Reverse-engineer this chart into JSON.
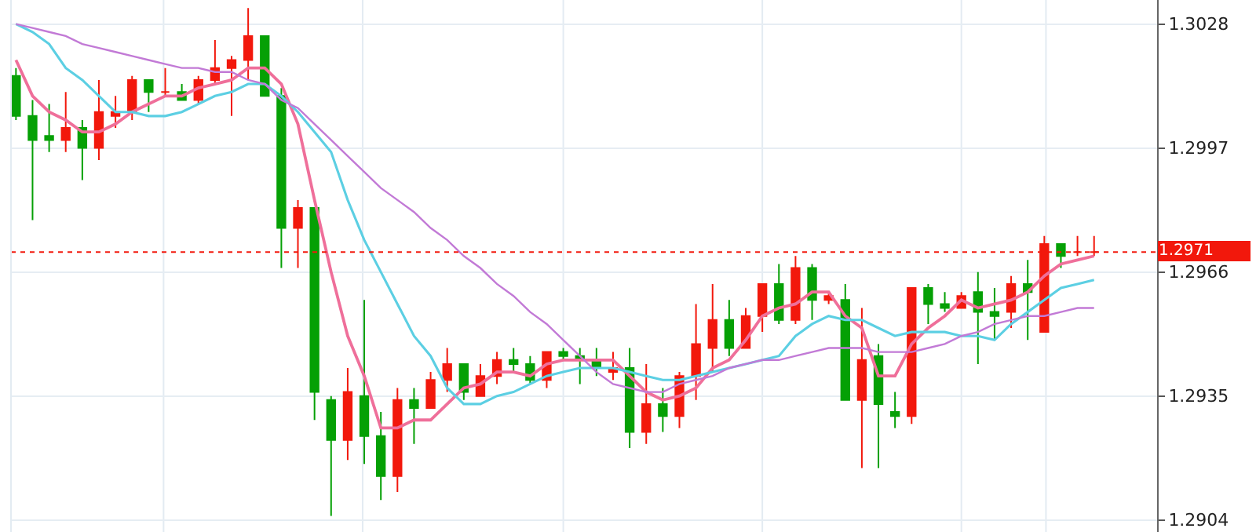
{
  "chart_data": {
    "type": "candlestick",
    "categories": [
      null,
      null,
      null,
      null,
      null,
      null,
      null,
      null,
      null,
      null,
      null,
      null,
      null,
      null,
      null,
      null,
      null,
      null,
      null,
      null,
      null,
      null,
      null,
      null,
      null,
      null,
      null,
      null,
      null,
      null,
      null,
      null,
      null,
      null,
      null,
      null,
      null,
      null,
      null,
      null,
      null,
      null,
      null,
      null,
      null,
      null,
      null,
      null,
      null,
      null,
      null,
      null,
      null,
      null,
      null,
      null,
      null,
      null,
      null,
      null,
      null,
      null,
      null,
      null,
      null,
      null
    ],
    "ohlc": [
      [
        1.3015,
        1.3017,
        1.3004,
        1.3005
      ],
      [
        1.3005,
        1.3009,
        1.2979,
        1.2999
      ],
      [
        1.3,
        1.3008,
        1.2996,
        1.2999
      ],
      [
        1.2999,
        1.3011,
        1.2996,
        1.3002
      ],
      [
        1.3002,
        1.3004,
        1.2989,
        1.2997
      ],
      [
        1.2997,
        1.3014,
        1.2994,
        1.3006
      ],
      [
        1.3005,
        1.301,
        1.3002,
        1.3006
      ],
      [
        1.3006,
        1.3015,
        1.3004,
        1.3014
      ],
      [
        1.3014,
        1.3014,
        1.3006,
        1.3011
      ],
      [
        1.3011,
        1.3017,
        1.301,
        1.3011
      ],
      [
        1.3011,
        1.3013,
        1.3009,
        1.3009
      ],
      [
        1.3009,
        1.3015,
        1.3008,
        1.3014
      ],
      [
        1.3014,
        1.3024,
        1.3013,
        1.3017
      ],
      [
        1.3017,
        1.302,
        1.3005,
        1.3019
      ],
      [
        1.3019,
        1.3032,
        1.3014,
        1.3025
      ],
      [
        1.3025,
        1.3025,
        1.301,
        1.301
      ],
      [
        1.301,
        1.3012,
        1.2967,
        1.2977
      ],
      [
        1.2977,
        1.2984,
        1.2967,
        1.2982
      ],
      [
        1.2982,
        1.2982,
        1.2929,
        1.2936
      ],
      [
        1.2934,
        1.2935,
        1.2905,
        1.2924
      ],
      [
        1.2924,
        1.2942,
        1.2919,
        1.2936
      ],
      [
        1.2935,
        1.2959,
        1.2918,
        1.2925
      ],
      [
        1.2925,
        1.2931,
        1.2909,
        1.2915
      ],
      [
        1.2915,
        1.2937,
        1.2911,
        1.2934
      ],
      [
        1.2934,
        1.2937,
        1.2923,
        1.2932
      ],
      [
        1.2932,
        1.2941,
        1.2932,
        1.2939
      ],
      [
        1.2939,
        1.2947,
        1.2936,
        1.2943
      ],
      [
        1.2943,
        1.2943,
        1.2934,
        1.2936
      ],
      [
        1.2935,
        1.2943,
        1.2935,
        1.294
      ],
      [
        1.294,
        1.2946,
        1.2938,
        1.2944
      ],
      [
        1.2944,
        1.2947,
        1.2941,
        1.2943
      ],
      [
        1.2943,
        1.2945,
        1.2938,
        1.2939
      ],
      [
        1.2939,
        1.2946,
        1.2937,
        1.2946
      ],
      [
        1.2946,
        1.2947,
        1.2944,
        1.2945
      ],
      [
        1.2945,
        1.2947,
        1.2938,
        1.2944
      ],
      [
        1.2944,
        1.2947,
        1.294,
        1.2942
      ],
      [
        1.2941,
        1.2946,
        1.2939,
        1.2942
      ],
      [
        1.2942,
        1.2947,
        1.2922,
        1.2926
      ],
      [
        1.2926,
        1.2943,
        1.2923,
        1.2933
      ],
      [
        1.2933,
        1.2937,
        1.2926,
        1.293
      ],
      [
        1.293,
        1.2941,
        1.2927,
        1.294
      ],
      [
        1.294,
        1.2958,
        1.2934,
        1.2948
      ],
      [
        1.2947,
        1.2963,
        1.2941,
        1.2954
      ],
      [
        1.2954,
        1.2959,
        1.2945,
        1.2947
      ],
      [
        1.2947,
        1.2957,
        1.2947,
        1.2955
      ],
      [
        1.2955,
        1.2963,
        1.2951,
        1.2963
      ],
      [
        1.2963,
        1.2968,
        1.2953,
        1.2954
      ],
      [
        1.2954,
        1.297,
        1.2953,
        1.2967
      ],
      [
        1.2967,
        1.2968,
        1.2954,
        1.2959
      ],
      [
        1.2959,
        1.2961,
        1.2958,
        1.296
      ],
      [
        1.2959,
        1.2963,
        1.2934,
        1.2934
      ],
      [
        1.2934,
        1.2957,
        1.2917,
        1.2944
      ],
      [
        1.2945,
        1.2948,
        1.2917,
        1.2933
      ],
      [
        1.2931,
        1.2936,
        1.2927,
        1.293
      ],
      [
        1.293,
        1.2962,
        1.2928,
        1.2962
      ],
      [
        1.2962,
        1.2963,
        1.2953,
        1.2958
      ],
      [
        1.2958,
        1.2961,
        1.2956,
        1.2957
      ],
      [
        1.2957,
        1.2961,
        1.2957,
        1.296
      ],
      [
        1.2961,
        1.2966,
        1.2943,
        1.2956
      ],
      [
        1.2956,
        1.2962,
        1.2949,
        1.2955
      ],
      [
        1.2956,
        1.2965,
        1.2952,
        1.2963
      ],
      [
        1.2963,
        1.2969,
        1.2949,
        1.2961
      ],
      [
        1.2951,
        1.2975,
        1.2951,
        1.2973
      ],
      [
        1.2973,
        1.2973,
        1.2967,
        1.297
      ],
      [
        1.2971,
        1.2975,
        1.297,
        1.2971
      ],
      [
        1.2971,
        1.2975,
        1.297,
        1.2971
      ]
    ],
    "colors": [
      "#05a005",
      "#05a005",
      "#05a005",
      "#f2180c",
      "#05a005",
      "#f2180c",
      "#f2180c",
      "#f2180c",
      "#05a005",
      "#f2180c",
      "#05a005",
      "#f2180c",
      "#f2180c",
      "#f2180c",
      "#f2180c",
      "#05a005",
      "#05a005",
      "#f2180c",
      "#05a005",
      "#05a005",
      "#f2180c",
      "#05a005",
      "#05a005",
      "#f2180c",
      "#05a005",
      "#f2180c",
      "#f2180c",
      "#05a005",
      "#f2180c",
      "#f2180c",
      "#05a005",
      "#05a005",
      "#f2180c",
      "#05a005",
      "#05a005",
      "#05a005",
      "#f2180c",
      "#05a005",
      "#f2180c",
      "#05a005",
      "#f2180c",
      "#f2180c",
      "#f2180c",
      "#05a005",
      "#f2180c",
      "#f2180c",
      "#05a005",
      "#f2180c",
      "#05a005",
      "#f2180c",
      "#05a005",
      "#f2180c",
      "#05a005",
      "#05a005",
      "#f2180c",
      "#05a005",
      "#05a005",
      "#f2180c",
      "#05a005",
      "#05a005",
      "#f2180c",
      "#05a005",
      "#f2180c",
      "#05a005",
      "#f2180c",
      "#f2180c"
    ],
    "series": [
      {
        "type": "line",
        "color": "#ef6f9a",
        "values": [
          1.3019,
          1.301,
          1.3006,
          1.3004,
          1.3001,
          1.3001,
          1.3003,
          1.3006,
          1.3008,
          1.301,
          1.301,
          1.3012,
          1.3013,
          1.3014,
          1.3017,
          1.3017,
          1.3013,
          1.3003,
          1.2984,
          1.2966,
          1.295,
          1.294,
          1.2927,
          1.2927,
          1.2929,
          1.2929,
          1.2933,
          1.2937,
          1.2938,
          1.2941,
          1.2941,
          1.294,
          1.2943,
          1.2944,
          1.2944,
          1.2944,
          1.2944,
          1.294,
          1.2936,
          1.2934,
          1.2935,
          1.2937,
          1.2942,
          1.2944,
          1.2949,
          1.2955,
          1.2957,
          1.2958,
          1.2961,
          1.2961,
          1.2955,
          1.2952,
          1.294,
          1.294,
          1.2948,
          1.2952,
          1.2955,
          1.2959,
          1.2957,
          1.2958,
          1.2959,
          1.2961,
          1.2965,
          1.2968,
          1.2969,
          1.297
        ]
      },
      {
        "type": "line",
        "color": "#5ccfe3",
        "values": [
          1.3028,
          1.3026,
          1.3023,
          1.3017,
          1.3014,
          1.301,
          1.3006,
          1.3006,
          1.3005,
          1.3005,
          1.3006,
          1.3008,
          1.301,
          1.3011,
          1.3013,
          1.3013,
          1.301,
          1.3006,
          1.3001,
          1.2996,
          1.2984,
          1.2974,
          1.2966,
          1.2958,
          1.295,
          1.2945,
          1.2937,
          1.2933,
          1.2933,
          1.2935,
          1.2936,
          1.2938,
          1.294,
          1.2941,
          1.2942,
          1.2942,
          1.2942,
          1.2941,
          1.294,
          1.2939,
          1.2939,
          1.294,
          1.2941,
          1.2942,
          1.2943,
          1.2944,
          1.2945,
          1.295,
          1.2953,
          1.2955,
          1.2954,
          1.2954,
          1.2952,
          1.295,
          1.2951,
          1.2951,
          1.2951,
          1.295,
          1.295,
          1.2949,
          1.2953,
          1.2956,
          1.2959,
          1.2962,
          1.2963,
          1.2964
        ]
      },
      {
        "type": "line",
        "color": "#c27ad6",
        "values": [
          1.3028,
          1.3027,
          1.3026,
          1.3025,
          1.3023,
          1.3022,
          1.3021,
          1.302,
          1.3019,
          1.3018,
          1.3017,
          1.3017,
          1.3016,
          1.3016,
          1.3014,
          1.3013,
          1.3009,
          1.3007,
          1.3003,
          1.2999,
          1.2995,
          1.2991,
          1.2987,
          1.2984,
          1.2981,
          1.2977,
          1.2974,
          1.297,
          1.2967,
          1.2963,
          1.296,
          1.2956,
          1.2953,
          1.2949,
          1.2945,
          1.2941,
          1.2938,
          1.2937,
          1.2936,
          1.2936,
          1.2938,
          1.2939,
          1.294,
          1.2942,
          1.2943,
          1.2944,
          1.2944,
          1.2945,
          1.2946,
          1.2947,
          1.2947,
          1.2947,
          1.2946,
          1.2946,
          1.2946,
          1.2947,
          1.2948,
          1.295,
          1.2951,
          1.2953,
          1.2954,
          1.2955,
          1.2955,
          1.2956,
          1.2957,
          1.2957
        ]
      }
    ],
    "ylim": [
      1.2901,
      1.3034
    ],
    "yticks": [
      1.3028,
      1.2997,
      1.2966,
      1.2935,
      1.2904
    ],
    "ref_lines": [
      {
        "axis": "y",
        "value": 1.2971,
        "label": "1.2971",
        "color": "#f2180c",
        "line_style": "dotted"
      }
    ],
    "grid": true,
    "tick_labels": "y"
  }
}
